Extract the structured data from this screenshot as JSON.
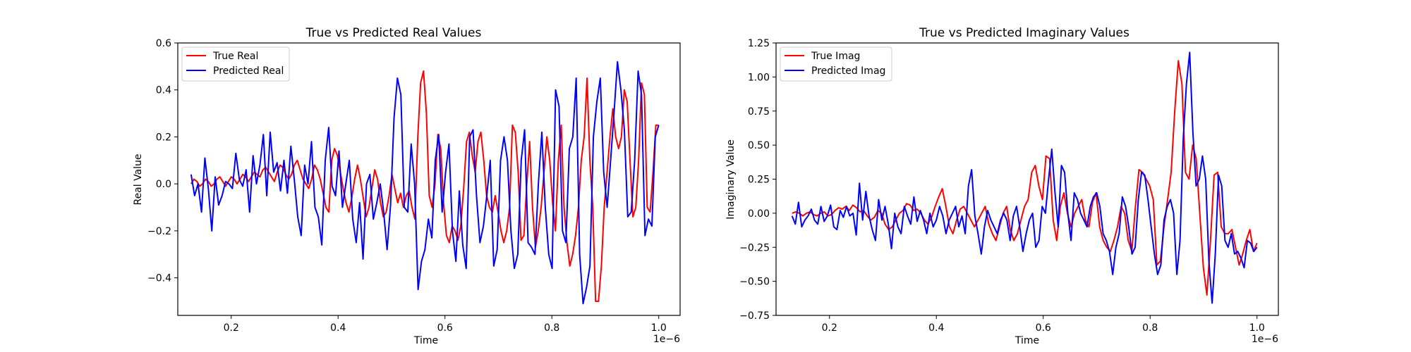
{
  "chart_data": [
    {
      "type": "line",
      "title": "True vs Predicted Real Values",
      "xlabel": "Time",
      "ylabel": "Real Value",
      "x_offset_label": "1e−6",
      "xlim": [
        0.1,
        1.04
      ],
      "ylim": [
        -0.56,
        0.6
      ],
      "x_ticks": [
        0.2,
        0.4,
        0.6,
        0.8,
        1.0
      ],
      "x_tick_labels": [
        "0.2",
        "0.4",
        "0.6",
        "0.8",
        "1.0"
      ],
      "y_ticks": [
        -0.4,
        -0.2,
        0.0,
        0.2,
        0.4,
        0.6
      ],
      "y_tick_labels": [
        "−0.4",
        "−0.2",
        "0.0",
        "0.2",
        "0.4",
        "0.6"
      ],
      "legend_position": "top-left",
      "grid": false,
      "x_start": 0.125,
      "x_end": 1.0,
      "series": [
        {
          "name": "True Real",
          "color": "#ff0000",
          "values": [
            0.0,
            0.02,
            0.01,
            -0.01,
            0.0,
            0.02,
            0.01,
            -0.01,
            0.0,
            0.02,
            0.03,
            0.01,
            -0.01,
            0.01,
            0.03,
            0.02,
            0.0,
            0.02,
            0.04,
            0.03,
            0.01,
            0.03,
            0.05,
            0.04,
            0.03,
            0.06,
            0.07,
            0.05,
            0.03,
            0.01,
            0.05,
            0.08,
            0.07,
            0.04,
            0.02,
            0.04,
            0.08,
            0.1,
            0.06,
            0.02,
            0.0,
            -0.02,
            0.02,
            0.08,
            0.06,
            0.02,
            -0.04,
            -0.1,
            -0.12,
            0.1,
            0.15,
            0.12,
            0.05,
            -0.02,
            -0.08,
            -0.12,
            -0.06,
            0.02,
            0.08,
            0.02,
            -0.06,
            -0.14,
            -0.1,
            -0.02,
            0.06,
            0.02,
            -0.08,
            -0.14,
            -0.12,
            -0.05,
            0.04,
            -0.02,
            -0.08,
            -0.04,
            -0.1,
            -0.05,
            -0.03,
            -0.1,
            -0.15,
            0.2,
            0.43,
            0.48,
            0.3,
            -0.05,
            -0.1,
            0.0,
            0.21,
            0.15,
            -0.08,
            -0.22,
            -0.25,
            -0.18,
            -0.2,
            -0.24,
            -0.18,
            -0.02,
            0.18,
            0.22,
            0.12,
            0.05,
            0.18,
            0.22,
            0.1,
            -0.05,
            -0.1,
            -0.12,
            -0.05,
            -0.12,
            -0.2,
            -0.25,
            -0.2,
            -0.1,
            0.25,
            0.22,
            0.05,
            -0.24,
            -0.22,
            0.0,
            0.18,
            -0.1,
            -0.27,
            -0.2,
            -0.1,
            0.05,
            0.2,
            0.1,
            -0.08,
            -0.2,
            0.1,
            0.25,
            -0.1,
            -0.25,
            -0.35,
            -0.3,
            -0.22,
            -0.1,
            0.1,
            0.2,
            0.45,
            0.1,
            -0.1,
            -0.5,
            -0.5,
            -0.35,
            -0.1,
            0.05,
            0.2,
            0.32,
            0.2,
            0.15,
            0.2,
            0.4,
            0.35,
            0.1,
            -0.14,
            -0.1,
            0.1,
            0.43,
            0.38,
            -0.1,
            -0.12,
            0.05,
            0.25,
            0.25
          ]
        },
        {
          "name": "Predicted Real",
          "color": "#0000ff",
          "values": [
            0.04,
            -0.05,
            0.0,
            -0.12,
            0.11,
            -0.02,
            -0.2,
            0.03,
            -0.09,
            -0.05,
            0.01,
            0.0,
            -0.02,
            0.13,
            0.02,
            -0.01,
            0.06,
            -0.12,
            0.12,
            0.0,
            0.08,
            0.21,
            -0.05,
            0.22,
            0.05,
            0.09,
            -0.03,
            0.1,
            -0.04,
            0.16,
            0.02,
            -0.14,
            -0.22,
            0.08,
            0.0,
            0.18,
            -0.1,
            -0.14,
            -0.26,
            0.1,
            0.24,
            -0.01,
            -0.05,
            0.14,
            -0.1,
            0.0,
            0.1,
            -0.15,
            -0.25,
            -0.08,
            -0.32,
            0.0,
            0.04,
            -0.15,
            -0.08,
            0.0,
            -0.12,
            -0.28,
            -0.09,
            0.28,
            0.45,
            0.38,
            -0.1,
            -0.12,
            0.17,
            0.0,
            -0.45,
            -0.33,
            -0.28,
            -0.15,
            -0.23,
            0.1,
            0.21,
            -0.12,
            0.05,
            0.17,
            -0.2,
            -0.33,
            -0.03,
            -0.26,
            -0.36,
            0.2,
            0.23,
            -0.05,
            -0.25,
            -0.18,
            -0.05,
            0.1,
            -0.35,
            -0.28,
            0.1,
            0.2,
            0.1,
            -0.2,
            -0.36,
            -0.3,
            0.1,
            0.23,
            -0.25,
            -0.27,
            -0.3,
            0.0,
            0.22,
            -0.1,
            -0.3,
            -0.36,
            0.4,
            0.33,
            -0.2,
            -0.25,
            0.15,
            0.2,
            0.45,
            -0.3,
            -0.51,
            -0.44,
            -0.35,
            0.2,
            0.35,
            0.45,
            0.05,
            -0.1,
            0.1,
            0.3,
            0.52,
            0.4,
            0.23,
            -0.14,
            -0.12,
            0.1,
            0.48,
            0.38,
            -0.22,
            -0.15,
            -0.18,
            0.2,
            0.25
          ]
        }
      ]
    },
    {
      "type": "line",
      "title": "True vs Predicted Imaginary Values",
      "xlabel": "Time",
      "ylabel": "Imaginary Value",
      "x_offset_label": "1e−6",
      "xlim": [
        0.1,
        1.04
      ],
      "ylim": [
        -0.75,
        1.25
      ],
      "x_ticks": [
        0.2,
        0.4,
        0.6,
        0.8,
        1.0
      ],
      "x_tick_labels": [
        "0.2",
        "0.4",
        "0.6",
        "0.8",
        "1.0"
      ],
      "y_ticks": [
        -0.75,
        -0.5,
        -0.25,
        0.0,
        0.25,
        0.5,
        0.75,
        1.0,
        1.25
      ],
      "y_tick_labels": [
        "−0.75",
        "−0.50",
        "−0.25",
        "0.00",
        "0.25",
        "0.50",
        "0.75",
        "1.00",
        "1.25"
      ],
      "legend_position": "top-left",
      "grid": false,
      "x_start": 0.13,
      "x_end": 1.0,
      "series": [
        {
          "name": "True Imag",
          "color": "#ff0000",
          "values": [
            0.0,
            0.01,
            0.0,
            -0.02,
            0.0,
            0.01,
            -0.01,
            -0.02,
            0.0,
            0.01,
            -0.02,
            -0.01,
            0.02,
            0.04,
            0.03,
            0.05,
            0.02,
            0.06,
            0.04,
            0.01,
            0.02,
            -0.02,
            -0.05,
            -0.03,
            0.02,
            0.0,
            -0.08,
            -0.12,
            -0.1,
            -0.05,
            0.0,
            0.02,
            0.07,
            0.06,
            0.02,
            0.03,
            0.0,
            -0.05,
            -0.08,
            -0.03,
            0.05,
            0.12,
            0.18,
            0.05,
            -0.1,
            -0.15,
            -0.05,
            0.03,
            0.05,
            0.0,
            -0.05,
            -0.1,
            -0.05,
            0.0,
            0.05,
            -0.08,
            -0.15,
            -0.2,
            -0.1,
            0.0,
            0.05,
            -0.12,
            -0.2,
            -0.15,
            -0.05,
            0.05,
            0.1,
            0.3,
            0.35,
            0.2,
            0.1,
            0.42,
            0.4,
            -0.05,
            -0.2,
            0.05,
            0.15,
            0.0,
            -0.1,
            0.0,
            0.05,
            0.1,
            -0.05,
            -0.1,
            0.08,
            0.15,
            -0.1,
            -0.2,
            -0.25,
            -0.28,
            -0.2,
            -0.1,
            0.05,
            0.0,
            -0.2,
            -0.28,
            0.05,
            0.32,
            0.3,
            0.25,
            0.2,
            0.1,
            -0.38,
            -0.35,
            -0.1,
            0.1,
            0.3,
            0.75,
            1.12,
            0.95,
            0.3,
            0.25,
            0.5,
            0.4,
            0.0,
            -0.4,
            -0.6,
            -0.2,
            0.28,
            0.3,
            -0.1,
            -0.15,
            -0.15,
            -0.12,
            -0.25,
            -0.38,
            -0.3,
            -0.2,
            -0.12,
            -0.28,
            -0.22
          ]
        },
        {
          "name": "Predicted Imag",
          "color": "#0000ff",
          "values": [
            -0.02,
            -0.08,
            0.08,
            -0.1,
            -0.05,
            -0.02,
            0.03,
            -0.05,
            -0.08,
            0.05,
            -0.06,
            -0.02,
            0.06,
            -0.1,
            -0.12,
            0.02,
            -0.03,
            0.05,
            -0.02,
            0.0,
            -0.16,
            0.22,
            -0.05,
            0.16,
            -0.02,
            -0.12,
            -0.2,
            0.1,
            -0.05,
            0.05,
            -0.08,
            -0.26,
            0.0,
            -0.1,
            -0.15,
            0.05,
            -0.02,
            -0.08,
            0.12,
            -0.06,
            0.02,
            -0.05,
            -0.15,
            0.0,
            -0.1,
            -0.05,
            0.05,
            -0.02,
            -0.15,
            -0.05,
            0.0,
            0.05,
            -0.1,
            -0.02,
            -0.15,
            0.2,
            0.32,
            -0.02,
            -0.15,
            -0.3,
            -0.1,
            0.02,
            -0.05,
            -0.1,
            -0.15,
            -0.05,
            0.0,
            -0.05,
            -0.2,
            -0.02,
            0.05,
            -0.1,
            -0.28,
            -0.15,
            -0.05,
            0.0,
            -0.25,
            -0.2,
            0.05,
            0.0,
            0.25,
            0.47,
            0.15,
            -0.1,
            0.35,
            0.3,
            0.0,
            -0.2,
            0.15,
            0.1,
            0.0,
            -0.05,
            -0.1,
            0.05,
            0.12,
            0.15,
            0.05,
            -0.15,
            -0.2,
            -0.28,
            -0.45,
            -0.25,
            -0.15,
            0.12,
            0.05,
            -0.1,
            -0.3,
            -0.25,
            0.1,
            0.3,
            0.28,
            0.1,
            -0.1,
            -0.3,
            -0.45,
            -0.38,
            -0.05,
            0.05,
            0.1,
            0.0,
            -0.45,
            -0.2,
            0.55,
            0.95,
            1.18,
            0.6,
            0.2,
            0.25,
            0.42,
            0.25,
            -0.35,
            -0.66,
            -0.3,
            0.28,
            0.2,
            -0.2,
            -0.25,
            -0.15,
            -0.3,
            -0.28,
            -0.33,
            -0.4,
            -0.2,
            -0.22,
            -0.28,
            -0.25
          ]
        }
      ]
    }
  ]
}
